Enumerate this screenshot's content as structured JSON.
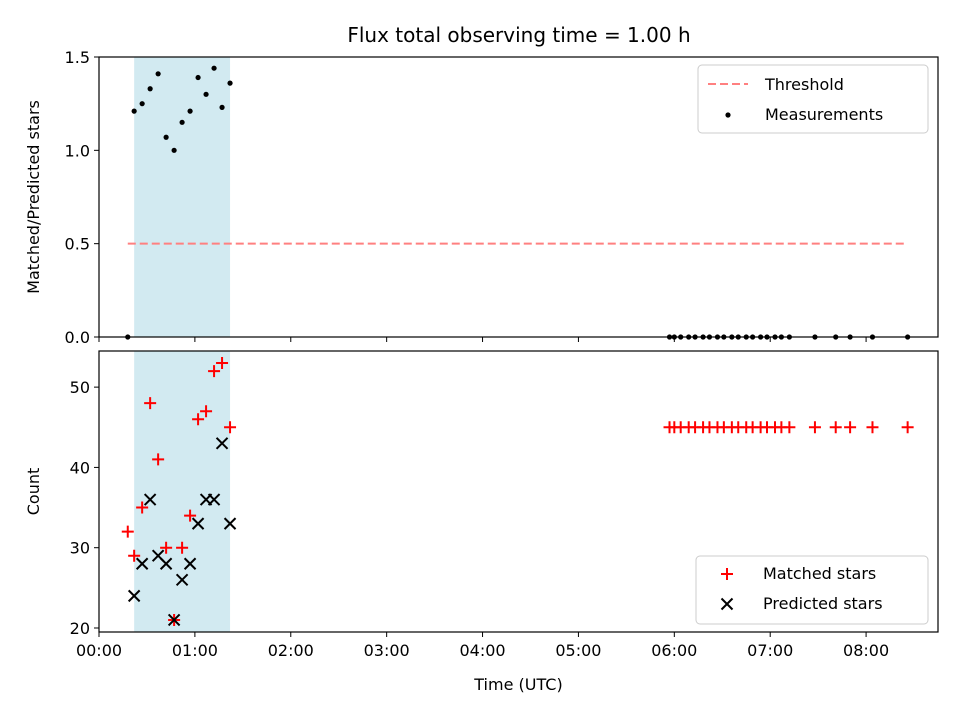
{
  "figure_title": "Flux total observing time = 1.00 h",
  "colors": {
    "threshold": "#ff8080",
    "measurement": "#000000",
    "matched": "#ff0000",
    "predicted": "#000000",
    "shade": "#add8e6"
  },
  "chart_data": [
    {
      "type": "scatter",
      "title": "Flux total observing time = 1.00 h",
      "xlabel": "",
      "ylabel": "Matched/Predicted stars",
      "xlim": [
        "00:00",
        "08:45"
      ],
      "ylim": [
        0,
        1.5
      ],
      "x_ticks": [
        "00:00",
        "01:00",
        "02:00",
        "03:00",
        "04:00",
        "05:00",
        "06:00",
        "07:00",
        "08:00"
      ],
      "y_ticks": [
        "0.0",
        "0.5",
        "1.0",
        "1.5"
      ],
      "shaded_span": [
        "00:22",
        "01:22"
      ],
      "legend_position": "top-right",
      "series": [
        {
          "name": "Threshold",
          "kind": "dashed-line",
          "x": [
            "00:18",
            "08:24"
          ],
          "y": [
            0.5,
            0.5
          ]
        },
        {
          "name": "Measurements",
          "kind": "dot",
          "x": [
            "00:18",
            "00:22",
            "00:27",
            "00:32",
            "00:37",
            "00:42",
            "00:47",
            "00:52",
            "00:57",
            "01:02",
            "01:07",
            "01:12",
            "01:17",
            "01:22",
            "05:57",
            "06:00",
            "06:04",
            "06:09",
            "06:13",
            "06:18",
            "06:22",
            "06:27",
            "06:31",
            "06:36",
            "06:40",
            "06:45",
            "06:49",
            "06:54",
            "06:58",
            "07:03",
            "07:07",
            "07:12",
            "07:28",
            "07:41",
            "07:50",
            "08:04",
            "08:26"
          ],
          "y": [
            0,
            1.21,
            1.25,
            1.33,
            1.41,
            1.07,
            1.0,
            1.15,
            1.21,
            1.39,
            1.3,
            1.44,
            1.23,
            1.36,
            0,
            0,
            0,
            0,
            0,
            0,
            0,
            0,
            0,
            0,
            0,
            0,
            0,
            0,
            0,
            0,
            0,
            0,
            0,
            0,
            0,
            0,
            0
          ]
        }
      ]
    },
    {
      "type": "scatter",
      "xlabel": "Time (UTC)",
      "ylabel": "Count",
      "xlim": [
        "00:00",
        "08:45"
      ],
      "ylim": [
        19.5,
        54.5
      ],
      "x_ticks": [
        "00:00",
        "01:00",
        "02:00",
        "03:00",
        "04:00",
        "05:00",
        "06:00",
        "07:00",
        "08:00"
      ],
      "y_ticks": [
        "20",
        "30",
        "40",
        "50"
      ],
      "shaded_span": [
        "00:22",
        "01:22"
      ],
      "legend_position": "bottom-right",
      "series": [
        {
          "name": "Matched stars",
          "marker": "+",
          "x": [
            "00:18",
            "00:22",
            "00:27",
            "00:32",
            "00:37",
            "00:42",
            "00:47",
            "00:52",
            "00:57",
            "01:02",
            "01:07",
            "01:12",
            "01:17",
            "01:22",
            "05:57",
            "06:00",
            "06:04",
            "06:09",
            "06:13",
            "06:18",
            "06:22",
            "06:27",
            "06:31",
            "06:36",
            "06:40",
            "06:45",
            "06:49",
            "06:54",
            "06:58",
            "07:03",
            "07:07",
            "07:12",
            "07:28",
            "07:41",
            "07:50",
            "08:04",
            "08:26"
          ],
          "y": [
            32,
            29,
            35,
            48,
            41,
            30,
            21,
            30,
            34,
            46,
            47,
            52,
            53,
            45,
            45,
            45,
            45,
            45,
            45,
            45,
            45,
            45,
            45,
            45,
            45,
            45,
            45,
            45,
            45,
            45,
            45,
            45,
            45,
            45,
            45,
            45,
            45
          ]
        },
        {
          "name": "Predicted stars",
          "marker": "x",
          "x": [
            "00:22",
            "00:27",
            "00:32",
            "00:37",
            "00:42",
            "00:47",
            "00:52",
            "00:57",
            "01:02",
            "01:07",
            "01:12",
            "01:17",
            "01:22"
          ],
          "y": [
            24,
            28,
            36,
            29,
            28,
            21,
            26,
            28,
            33,
            36,
            36,
            43,
            33
          ]
        }
      ]
    }
  ]
}
